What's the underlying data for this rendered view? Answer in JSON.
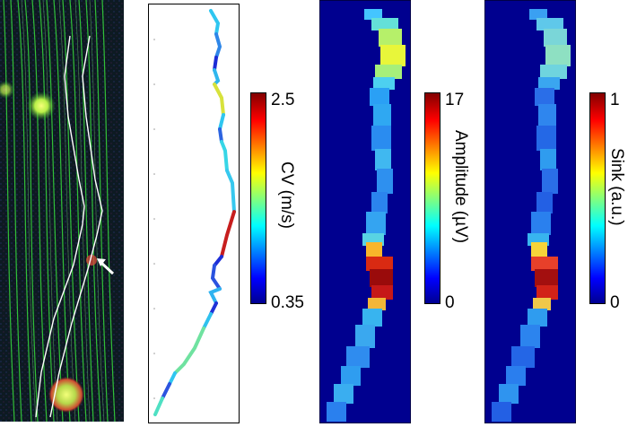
{
  "figure": {
    "panels": [
      {
        "id": "micrograph",
        "kind": "fluorescence-image"
      },
      {
        "id": "cv-trace",
        "kind": "trace"
      },
      {
        "id": "amplitude-map",
        "kind": "heatmap"
      },
      {
        "id": "sink-map",
        "kind": "heatmap"
      }
    ]
  },
  "colorbars": {
    "cv": {
      "label": "CV (m/s)",
      "max": "2.5",
      "min": "0.35"
    },
    "amplitude": {
      "label": "Amplitude (µV)",
      "max": "17",
      "min": "0"
    },
    "sink": {
      "label": "Sink (a.u.)",
      "max": "1",
      "min": "0"
    }
  },
  "colors": {
    "heatmap_background": "#00008f",
    "outline": "#000000",
    "trace_path": "#ffffff",
    "arrow": "#ffffff",
    "axon_green": "#35d13a"
  },
  "icons": {
    "arrow": "arrow-icon"
  }
}
